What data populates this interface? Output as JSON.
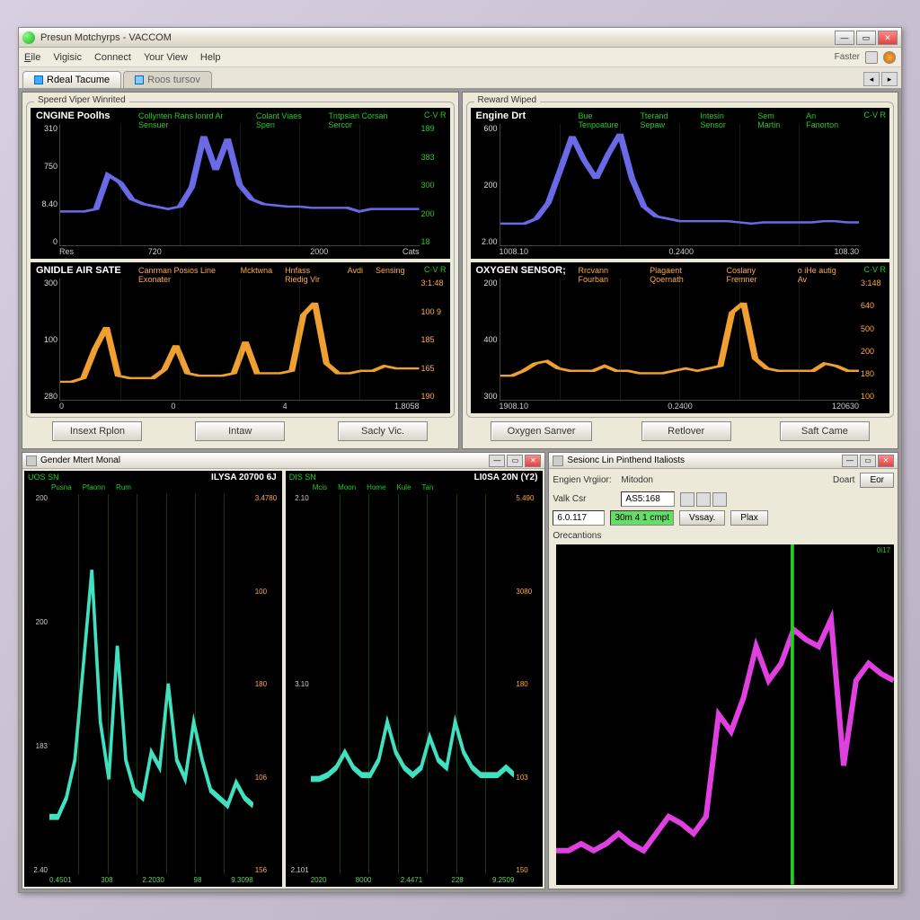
{
  "titlebar": {
    "text": "Presun Motchyrps - VACCOM"
  },
  "menu": {
    "file": "File",
    "vigisic": "Vigisic",
    "connect": "Connect",
    "view": "Your View",
    "help": "Help",
    "right_label": "Faster"
  },
  "tabs": {
    "t1": "Rdeal Tacume",
    "t2": "Roos tursov"
  },
  "panel_left": {
    "group_label": "Speerd Viper Winrited",
    "chart1": {
      "title": "CNGINE Poolhs",
      "sublabels": [
        "Collynten Rans lonrd Ar Sensuer",
        "Colant Viaes Spen",
        "Tntpsian Corsan Sercor"
      ],
      "corner": "C·V  R",
      "y_left": [
        "310",
        "750",
        "8.40",
        "0"
      ],
      "y_right": [
        "189",
        "383",
        "300",
        "200",
        "18"
      ],
      "x": [
        "Res",
        "720",
        "",
        "2000",
        "Cats"
      ],
      "color": "#6a6ae8",
      "values": [
        0.28,
        0.28,
        0.28,
        0.3,
        0.58,
        0.52,
        0.38,
        0.34,
        0.32,
        0.3,
        0.32,
        0.48,
        0.9,
        0.62,
        0.88,
        0.5,
        0.38,
        0.34,
        0.33,
        0.32,
        0.32,
        0.31,
        0.31,
        0.31,
        0.31,
        0.28,
        0.3,
        0.3,
        0.3,
        0.3,
        0.3
      ]
    },
    "chart2": {
      "title": "GNIDLE AIR SATE",
      "sublabels": [
        "Canrman Posios Line Exonater",
        "Mcktwna",
        "Hnfass Riedig Vir",
        "Avdi",
        "Sensing"
      ],
      "corner": "C·V  R",
      "y_left": [
        "300",
        "100",
        "280"
      ],
      "y_right": [
        "3:1:48",
        "100 9",
        "185",
        "165",
        "190"
      ],
      "x": [
        "0",
        "0",
        "4",
        "1.8058"
      ],
      "color": "#f0a030",
      "values": [
        0.15,
        0.15,
        0.18,
        0.42,
        0.6,
        0.2,
        0.18,
        0.18,
        0.18,
        0.25,
        0.45,
        0.22,
        0.2,
        0.2,
        0.2,
        0.22,
        0.48,
        0.22,
        0.22,
        0.22,
        0.24,
        0.7,
        0.8,
        0.3,
        0.22,
        0.22,
        0.24,
        0.24,
        0.28,
        0.26,
        0.26,
        0.26
      ]
    },
    "buttons": {
      "b1": "Insext Rplon",
      "b2": "Intaw",
      "b3": "Sacly Vic."
    }
  },
  "panel_right": {
    "group_label": "Reward Wiped",
    "chart1": {
      "title": "Engine Drt",
      "sublabels": [
        "Bue Tenpoature",
        "Tterand Sepaw",
        "Intesin Sensor",
        "Sem Martin",
        "An Fanorton"
      ],
      "corner": "C·V  R",
      "y_left": [
        "600",
        "200",
        "2.00"
      ],
      "y_right": [
        "",
        "",
        "",
        ""
      ],
      "x": [
        "1008.10",
        "0.2400",
        "108.30"
      ],
      "color": "#6a6ae8",
      "values": [
        0.18,
        0.18,
        0.18,
        0.22,
        0.35,
        0.62,
        0.9,
        0.7,
        0.55,
        0.75,
        0.92,
        0.55,
        0.32,
        0.24,
        0.22,
        0.2,
        0.2,
        0.2,
        0.2,
        0.2,
        0.19,
        0.18,
        0.19,
        0.19,
        0.19,
        0.19,
        0.19,
        0.2,
        0.2,
        0.19,
        0.19
      ]
    },
    "chart2": {
      "title": "OXYGEN SENSOR;",
      "sublabels": [
        "Rrcvann Fourban",
        "Plagaent Qoernath",
        "Coslany Fremner",
        "o iHe autig Av"
      ],
      "corner": "C·V  R",
      "y_left": [
        "200",
        "400",
        "300"
      ],
      "y_right": [
        "3:148",
        "640",
        "500",
        "200",
        "180",
        "100"
      ],
      "x": [
        "1908.10",
        "0.2400",
        "120630"
      ],
      "color": "#f0a030",
      "values": [
        0.2,
        0.2,
        0.24,
        0.3,
        0.32,
        0.26,
        0.24,
        0.24,
        0.24,
        0.28,
        0.24,
        0.24,
        0.22,
        0.22,
        0.22,
        0.24,
        0.26,
        0.24,
        0.26,
        0.28,
        0.72,
        0.8,
        0.34,
        0.26,
        0.24,
        0.24,
        0.24,
        0.24,
        0.3,
        0.28,
        0.24,
        0.24
      ]
    },
    "buttons": {
      "b1": "Oxygen Sanver",
      "b2": "Retlover",
      "b3": "Saft Came"
    }
  },
  "panel_bl": {
    "title": "Gender Mtert Monal",
    "chartA": {
      "corner": "UOS SN",
      "title": "ILYSA 20700 6J",
      "labels": [
        "Pusna",
        "Pfaonn",
        "Rum"
      ],
      "y_left": [
        "200",
        "200",
        "183",
        "2.40"
      ],
      "y_right": [
        "3.4780",
        "100",
        "180",
        "106",
        "156"
      ],
      "x": [
        "0.4501",
        "308",
        "2.2030",
        "98",
        "9.3098"
      ],
      "color": "#40e0c0",
      "values": [
        0.15,
        0.15,
        0.2,
        0.3,
        0.55,
        0.8,
        0.4,
        0.25,
        0.6,
        0.3,
        0.22,
        0.2,
        0.32,
        0.28,
        0.5,
        0.3,
        0.25,
        0.4,
        0.3,
        0.22,
        0.2,
        0.18,
        0.24,
        0.2,
        0.18
      ]
    },
    "chartB": {
      "corner": "DIS SN",
      "title": "LI0SA 20N (Y2)",
      "labels": [
        "Mcis",
        "Moon",
        "Home",
        "Kule",
        "Tan"
      ],
      "y_left": [
        "2.10",
        "3.10",
        "2.101"
      ],
      "y_right": [
        "5.490",
        "3080",
        "180",
        "103",
        "150"
      ],
      "x": [
        "2020",
        "8000",
        "2.4471",
        "228",
        "9.2509"
      ],
      "color": "#40e0c0",
      "values": [
        0.25,
        0.25,
        0.26,
        0.28,
        0.32,
        0.28,
        0.26,
        0.26,
        0.3,
        0.4,
        0.32,
        0.28,
        0.26,
        0.28,
        0.36,
        0.3,
        0.28,
        0.4,
        0.32,
        0.28,
        0.26,
        0.26,
        0.26,
        0.28,
        0.26
      ]
    }
  },
  "panel_br": {
    "title": "Sesionc Lin Pinthend Italiosts",
    "row1_label": "Engien Vrgiior:",
    "row1_col2": "Mitodon",
    "row1_col3": "Doart",
    "row1_btn": "Eor",
    "row2_label": "Valk Csr",
    "row2_val1": "AS5:168",
    "row2_val2": "6.0.117",
    "row2_val3": "30m 4 1 cmpt",
    "row2_btn1": "Vssay.",
    "row2_btn2": "Plax",
    "section": "Orecantions",
    "chart": {
      "marker": "0i17",
      "color": "#e040e0",
      "values": [
        0.1,
        0.1,
        0.12,
        0.1,
        0.12,
        0.15,
        0.12,
        0.1,
        0.15,
        0.2,
        0.18,
        0.15,
        0.2,
        0.5,
        0.45,
        0.55,
        0.7,
        0.6,
        0.65,
        0.75,
        0.72,
        0.7,
        0.78,
        0.35,
        0.6,
        0.65,
        0.62,
        0.6
      ]
    }
  }
}
